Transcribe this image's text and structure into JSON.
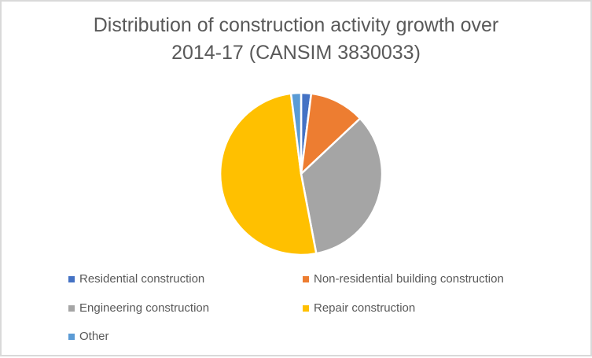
{
  "window": {
    "type": "chart-image",
    "background": "#FFFFFF",
    "border_color": "#D9D9D9"
  },
  "chart_data": {
    "type": "pie",
    "title": "Distribution of construction activity growth over 2014-17 (CANSIM 3830033)",
    "title_lines": [
      "Distribution of construction activity growth over",
      "2014-17 (CANSIM 3830033)"
    ],
    "title_color": "#595959",
    "categories": [
      "Residential construction",
      "Non-residential building construction",
      "Engineering construction",
      "Repair construction",
      "Other"
    ],
    "values": [
      2,
      11,
      34,
      51,
      2
    ],
    "values_unit": "percent share of total, estimated from slice angles (no data labels shown)",
    "colors": [
      "#4472C4",
      "#ED7D31",
      "#A5A5A5",
      "#FFC000",
      "#5B9BD5"
    ],
    "start_angle_deg": 0,
    "direction": "clockwise",
    "slice_border_color": "#FFFFFF",
    "data_labels": false,
    "legend": {
      "position": "bottom-left",
      "columns": 2,
      "text_color": "#595959"
    }
  }
}
